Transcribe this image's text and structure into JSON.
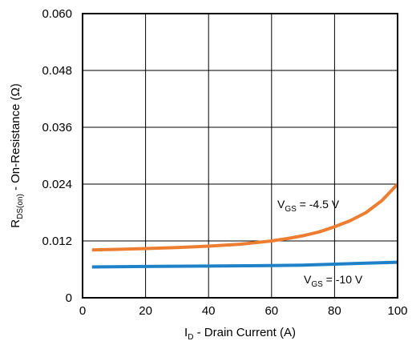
{
  "chart_data": {
    "type": "line",
    "xlabel": {
      "main": "I",
      "sub": "D",
      "rest": " - Drain Current (A)"
    },
    "ylabel": {
      "main": "R",
      "sub": "DS(on)",
      "rest": " - On-Resistance (Ω)"
    },
    "xlim": [
      0,
      100
    ],
    "ylim": [
      0,
      0.06
    ],
    "x_ticks": [
      "0",
      "20",
      "40",
      "60",
      "80",
      "100"
    ],
    "y_ticks": [
      "0",
      "0.012",
      "0.024",
      "0.036",
      "0.048",
      "0.060"
    ],
    "grid": true,
    "series": [
      {
        "name": {
          "main": "V",
          "sub": "GS",
          "rest": " = -4.5 V"
        },
        "color": "#ED7D31",
        "x": [
          3,
          10,
          20,
          30,
          40,
          50,
          60,
          65,
          70,
          75,
          80,
          85,
          90,
          95,
          100
        ],
        "y": [
          0.0101,
          0.0102,
          0.0104,
          0.0106,
          0.0109,
          0.0113,
          0.012,
          0.0125,
          0.0131,
          0.0139,
          0.015,
          0.0163,
          0.018,
          0.0205,
          0.024
        ]
      },
      {
        "name": {
          "main": "V",
          "sub": "GS",
          "rest": " = -10 V"
        },
        "color": "#1F82C9",
        "x": [
          3,
          20,
          40,
          60,
          70,
          80,
          90,
          100
        ],
        "y": [
          0.0065,
          0.0066,
          0.0067,
          0.0068,
          0.0069,
          0.0071,
          0.0073,
          0.0075
        ]
      }
    ]
  }
}
